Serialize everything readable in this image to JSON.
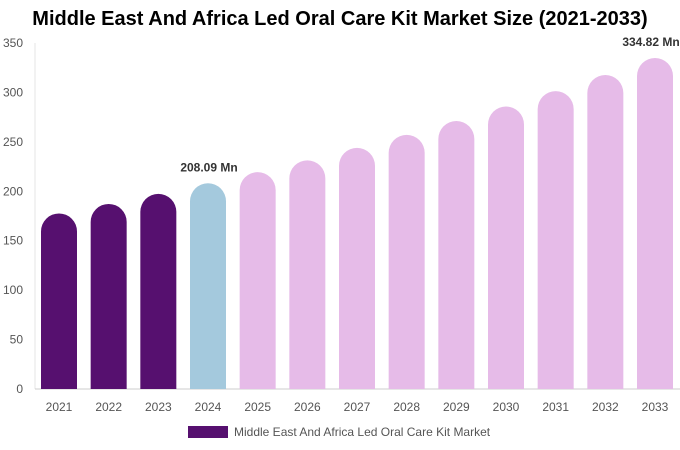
{
  "chart_data": {
    "type": "bar",
    "title": "Middle East And Africa Led Oral Care Kit Market Size (2021-2033)",
    "categories": [
      "2021",
      "2022",
      "2023",
      "2024",
      "2025",
      "2026",
      "2027",
      "2028",
      "2029",
      "2030",
      "2031",
      "2032",
      "2033"
    ],
    "series": [
      {
        "name": "Middle East And Africa Led Oral Care Kit Market",
        "values": [
          177.6,
          187.2,
          197.4,
          208.09,
          219.4,
          231.3,
          243.9,
          257.1,
          271.1,
          285.8,
          301.3,
          317.6,
          334.82
        ]
      }
    ],
    "data_labels": [
      {
        "category": "2024",
        "text": "208.09 Mn"
      },
      {
        "category": "2033",
        "text": "334.82 Mn"
      }
    ],
    "ylim": [
      0,
      350
    ],
    "yticks": [
      0,
      50,
      100,
      150,
      200,
      250,
      300,
      350
    ],
    "grid": false,
    "legend": "bottom",
    "colors": {
      "historical": "#56106f",
      "base_year": "#a4c9dd",
      "forecast": "#e6bbe8"
    }
  }
}
